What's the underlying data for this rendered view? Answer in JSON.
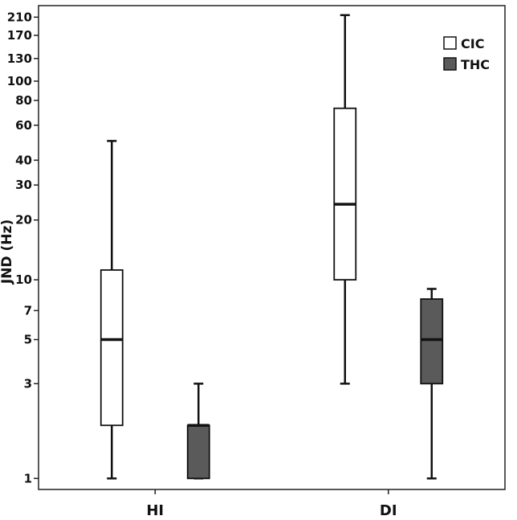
{
  "chart_data": {
    "type": "boxplot",
    "ylabel": "JND (Hz)",
    "yscale": "log",
    "ylim": [
      0.88,
      240
    ],
    "yticks": [
      1,
      3,
      5,
      7,
      10,
      20,
      30,
      40,
      60,
      80,
      100,
      130,
      170,
      210
    ],
    "categories": [
      "HI",
      "DI"
    ],
    "legend_position": "top-right",
    "grid": false,
    "series": [
      {
        "name": "CIC",
        "color": "#ffffff",
        "boxes": [
          {
            "category": "HI",
            "min": 1,
            "q1": 1.85,
            "median": 5,
            "q3": 11.2,
            "max": 50
          },
          {
            "category": "DI",
            "min": 3,
            "q1": 10,
            "median": 24,
            "q3": 73,
            "max": 215
          }
        ]
      },
      {
        "name": "THC",
        "color": "#5a5a5a",
        "boxes": [
          {
            "category": "HI",
            "min": 1,
            "q1": 1,
            "median": 1.85,
            "q3": 1.85,
            "max": 3
          },
          {
            "category": "DI",
            "min": 1,
            "q1": 3,
            "median": 5,
            "q3": 8,
            "max": 9
          }
        ]
      }
    ]
  }
}
